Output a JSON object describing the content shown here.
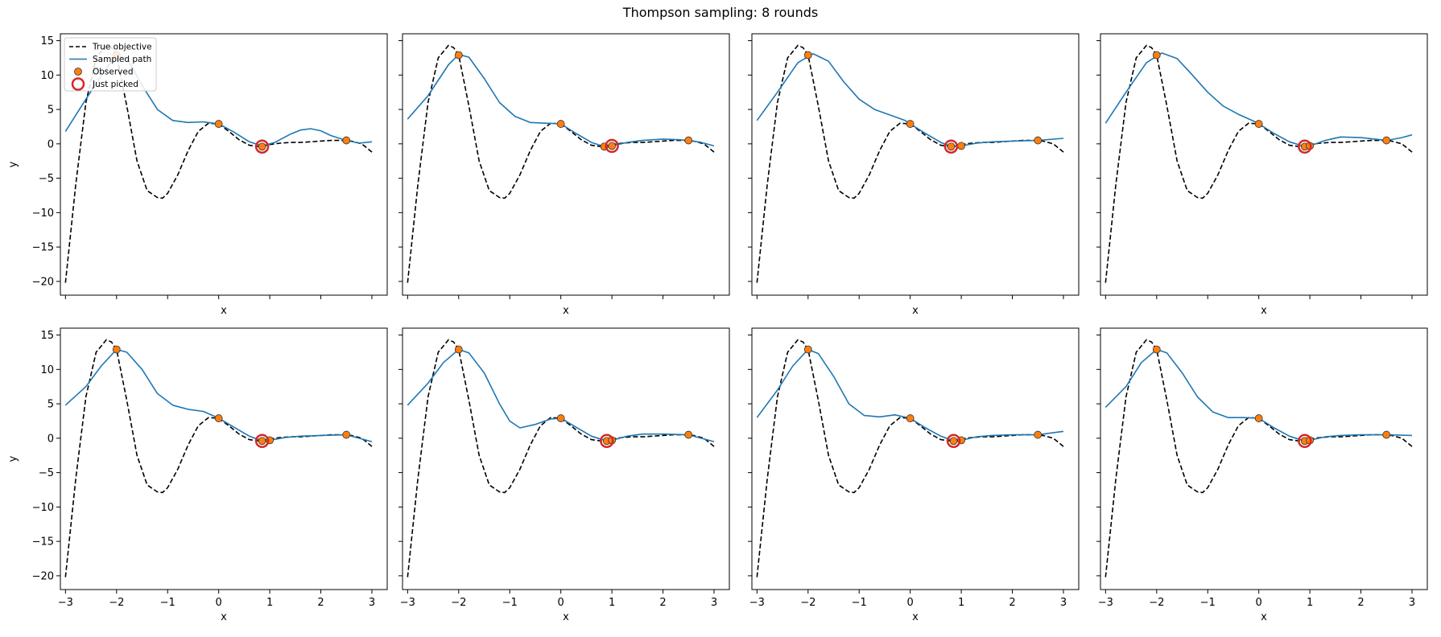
{
  "figure": {
    "title": "Thompson sampling: 8 rounds"
  },
  "legend": {
    "placement": "upper-left",
    "entries": [
      {
        "label": "True objective",
        "style": "dashed-line",
        "color": "#000000"
      },
      {
        "label": "Sampled path",
        "style": "line",
        "color": "#1f77b4"
      },
      {
        "label": "Observed",
        "style": "marker",
        "color": "#ff7f0e"
      },
      {
        "label": "Just picked",
        "style": "ring",
        "color": "#d62728"
      }
    ]
  },
  "colors": {
    "true_objective": "#000000",
    "sampled_path": "#1f77b4",
    "observed": "#ff7f0e",
    "just_picked": "#d62728"
  },
  "chart_data": {
    "type": "line",
    "layout_grid": {
      "rows": 2,
      "cols": 4
    },
    "xlabel": "x",
    "ylabel": "y",
    "xlim": [
      -3.1,
      3.3
    ],
    "ylim": [
      -22,
      16
    ],
    "xticks": [
      -3,
      -2,
      -1,
      0,
      1,
      2,
      3
    ],
    "yticks": [
      -20,
      -15,
      -10,
      -5,
      0,
      5,
      10,
      15
    ],
    "xtick_labels_on_row": 2,
    "ytick_labels_on_col": 1,
    "true_objective": {
      "x": [
        -3.0,
        -2.8,
        -2.6,
        -2.4,
        -2.2,
        -2.1,
        -2.0,
        -1.8,
        -1.6,
        -1.4,
        -1.2,
        -1.1,
        -1.0,
        -0.8,
        -0.6,
        -0.4,
        -0.2,
        0.0,
        0.2,
        0.4,
        0.6,
        0.8,
        0.9,
        1.0,
        1.2,
        1.4,
        1.6,
        1.8,
        2.0,
        2.2,
        2.4,
        2.6,
        2.8,
        3.0
      ],
      "y": [
        -20.2,
        -6.0,
        6.0,
        12.5,
        14.3,
        14.0,
        12.9,
        5.5,
        -2.5,
        -6.8,
        -7.8,
        -7.9,
        -7.2,
        -4.5,
        -1.0,
        1.8,
        3.0,
        2.9,
        1.8,
        0.6,
        -0.2,
        -0.4,
        -0.3,
        -0.1,
        0.1,
        0.2,
        0.2,
        0.3,
        0.4,
        0.5,
        0.5,
        0.4,
        0.0,
        -1.2
      ]
    },
    "panels": [
      {
        "round": 1,
        "sampled_path": {
          "x": [
            -3.0,
            -2.6,
            -2.2,
            -2.0,
            -1.8,
            -1.5,
            -1.2,
            -0.9,
            -0.6,
            -0.3,
            0.0,
            0.3,
            0.6,
            0.85,
            1.1,
            1.4,
            1.6,
            1.8,
            2.0,
            2.2,
            2.5,
            2.75,
            3.0
          ],
          "y": [
            1.8,
            6.5,
            11.0,
            12.8,
            12.5,
            8.5,
            5.0,
            3.4,
            3.1,
            3.2,
            2.9,
            1.7,
            0.3,
            -0.3,
            0.2,
            1.4,
            2.0,
            2.2,
            1.9,
            1.2,
            0.5,
            0.1,
            0.3
          ]
        },
        "observed": [
          {
            "x": -2.0,
            "y": 12.9
          },
          {
            "x": 0.0,
            "y": 2.9
          },
          {
            "x": 0.85,
            "y": -0.4
          },
          {
            "x": 2.5,
            "y": 0.5
          }
        ],
        "just_picked": {
          "x": 0.85,
          "y": -0.4
        }
      },
      {
        "round": 2,
        "sampled_path": {
          "x": [
            -3.0,
            -2.6,
            -2.2,
            -2.0,
            -1.8,
            -1.5,
            -1.2,
            -0.9,
            -0.6,
            -0.3,
            0.0,
            0.3,
            0.6,
            0.85,
            1.0,
            1.3,
            1.6,
            2.0,
            2.3,
            2.5,
            2.75,
            3.0
          ],
          "y": [
            3.6,
            7.0,
            11.5,
            13.0,
            12.6,
            9.5,
            6.0,
            4.0,
            3.1,
            3.0,
            2.9,
            1.5,
            0.2,
            -0.4,
            -0.3,
            0.2,
            0.5,
            0.7,
            0.6,
            0.5,
            0.2,
            -0.3
          ]
        },
        "observed": [
          {
            "x": -2.0,
            "y": 12.9
          },
          {
            "x": 0.0,
            "y": 2.9
          },
          {
            "x": 0.85,
            "y": -0.4
          },
          {
            "x": 1.0,
            "y": -0.3
          },
          {
            "x": 2.5,
            "y": 0.5
          }
        ],
        "just_picked": {
          "x": 1.0,
          "y": -0.3
        }
      },
      {
        "round": 3,
        "sampled_path": {
          "x": [
            -3.0,
            -2.6,
            -2.2,
            -1.9,
            -1.6,
            -1.3,
            -1.0,
            -0.7,
            -0.4,
            -0.1,
            0.0,
            0.3,
            0.6,
            0.8,
            1.0,
            1.3,
            1.6,
            2.0,
            2.5,
            3.0
          ],
          "y": [
            3.4,
            7.5,
            11.8,
            13.1,
            12.0,
            9.0,
            6.5,
            5.0,
            4.2,
            3.4,
            2.9,
            1.5,
            0.2,
            -0.4,
            -0.3,
            0.1,
            0.3,
            0.4,
            0.5,
            0.8
          ]
        },
        "observed": [
          {
            "x": -2.0,
            "y": 12.9
          },
          {
            "x": 0.0,
            "y": 2.9
          },
          {
            "x": 0.8,
            "y": -0.4
          },
          {
            "x": 1.0,
            "y": -0.3
          },
          {
            "x": 2.5,
            "y": 0.5
          }
        ],
        "just_picked": {
          "x": 0.8,
          "y": -0.4
        }
      },
      {
        "round": 4,
        "sampled_path": {
          "x": [
            -3.0,
            -2.6,
            -2.2,
            -1.9,
            -1.6,
            -1.3,
            -1.0,
            -0.7,
            -0.4,
            -0.1,
            0.0,
            0.3,
            0.6,
            0.9,
            1.0,
            1.3,
            1.6,
            2.0,
            2.5,
            2.8,
            3.0
          ],
          "y": [
            3.0,
            7.5,
            11.8,
            13.2,
            12.4,
            10.0,
            7.5,
            5.5,
            4.3,
            3.3,
            2.9,
            1.5,
            0.3,
            -0.4,
            -0.3,
            0.5,
            1.0,
            0.9,
            0.5,
            0.9,
            1.3
          ]
        },
        "observed": [
          {
            "x": -2.0,
            "y": 12.9
          },
          {
            "x": 0.0,
            "y": 2.9
          },
          {
            "x": 0.9,
            "y": -0.4
          },
          {
            "x": 1.0,
            "y": -0.3
          },
          {
            "x": 2.5,
            "y": 0.5
          }
        ],
        "just_picked": {
          "x": 0.9,
          "y": -0.4
        }
      },
      {
        "round": 5,
        "sampled_path": {
          "x": [
            -3.0,
            -2.6,
            -2.3,
            -2.0,
            -1.8,
            -1.5,
            -1.2,
            -0.9,
            -0.6,
            -0.3,
            0.0,
            0.3,
            0.6,
            0.85,
            1.0,
            1.3,
            1.6,
            2.0,
            2.5,
            3.0
          ],
          "y": [
            4.8,
            7.5,
            10.5,
            12.9,
            12.5,
            10.0,
            6.5,
            4.8,
            4.2,
            3.9,
            2.9,
            1.6,
            0.3,
            -0.4,
            -0.3,
            0.1,
            0.3,
            0.4,
            0.5,
            -0.5
          ]
        },
        "observed": [
          {
            "x": -2.0,
            "y": 12.9
          },
          {
            "x": 0.0,
            "y": 2.9
          },
          {
            "x": 0.85,
            "y": -0.4
          },
          {
            "x": 1.0,
            "y": -0.3
          },
          {
            "x": 2.5,
            "y": 0.5
          }
        ],
        "just_picked": {
          "x": 0.85,
          "y": -0.4
        }
      },
      {
        "round": 6,
        "sampled_path": {
          "x": [
            -3.0,
            -2.6,
            -2.3,
            -2.0,
            -1.8,
            -1.5,
            -1.2,
            -1.0,
            -0.8,
            -0.5,
            -0.2,
            0.0,
            0.3,
            0.6,
            0.9,
            1.0,
            1.3,
            1.6,
            2.0,
            2.5,
            3.0
          ],
          "y": [
            4.8,
            8.0,
            11.0,
            12.9,
            12.4,
            9.5,
            5.0,
            2.5,
            1.5,
            2.0,
            2.8,
            2.9,
            1.6,
            0.3,
            -0.4,
            -0.3,
            0.3,
            0.6,
            0.6,
            0.5,
            -0.5
          ]
        },
        "observed": [
          {
            "x": -2.0,
            "y": 12.9
          },
          {
            "x": 0.0,
            "y": 2.9
          },
          {
            "x": 0.9,
            "y": -0.4
          },
          {
            "x": 1.0,
            "y": -0.3
          },
          {
            "x": 2.5,
            "y": 0.5
          }
        ],
        "just_picked": {
          "x": 0.9,
          "y": -0.4
        }
      },
      {
        "round": 7,
        "sampled_path": {
          "x": [
            -3.0,
            -2.6,
            -2.3,
            -2.0,
            -1.8,
            -1.5,
            -1.2,
            -0.9,
            -0.6,
            -0.3,
            0.0,
            0.3,
            0.6,
            0.85,
            1.0,
            1.3,
            1.6,
            2.0,
            2.5,
            3.0
          ],
          "y": [
            3.0,
            7.0,
            10.5,
            12.9,
            12.3,
            9.0,
            5.0,
            3.3,
            3.1,
            3.4,
            2.9,
            1.5,
            0.3,
            -0.4,
            -0.3,
            0.2,
            0.4,
            0.5,
            0.5,
            1.0
          ]
        },
        "observed": [
          {
            "x": -2.0,
            "y": 12.9
          },
          {
            "x": 0.0,
            "y": 2.9
          },
          {
            "x": 0.85,
            "y": -0.4
          },
          {
            "x": 1.0,
            "y": -0.3
          },
          {
            "x": 2.5,
            "y": 0.5
          }
        ],
        "just_picked": {
          "x": 0.85,
          "y": -0.4
        }
      },
      {
        "round": 8,
        "sampled_path": {
          "x": [
            -3.0,
            -2.6,
            -2.3,
            -2.0,
            -1.8,
            -1.5,
            -1.2,
            -0.9,
            -0.6,
            -0.3,
            0.0,
            0.3,
            0.6,
            0.9,
            1.0,
            1.3,
            1.6,
            2.0,
            2.5,
            3.0
          ],
          "y": [
            4.5,
            7.5,
            11.0,
            12.9,
            12.4,
            9.5,
            6.0,
            3.8,
            3.0,
            3.0,
            2.9,
            1.5,
            0.3,
            -0.4,
            -0.3,
            0.2,
            0.4,
            0.5,
            0.5,
            0.4
          ]
        },
        "observed": [
          {
            "x": -2.0,
            "y": 12.9
          },
          {
            "x": 0.0,
            "y": 2.9
          },
          {
            "x": 0.9,
            "y": -0.4
          },
          {
            "x": 1.0,
            "y": -0.3
          },
          {
            "x": 2.5,
            "y": 0.5
          }
        ],
        "just_picked": {
          "x": 0.9,
          "y": -0.4
        }
      }
    ]
  }
}
